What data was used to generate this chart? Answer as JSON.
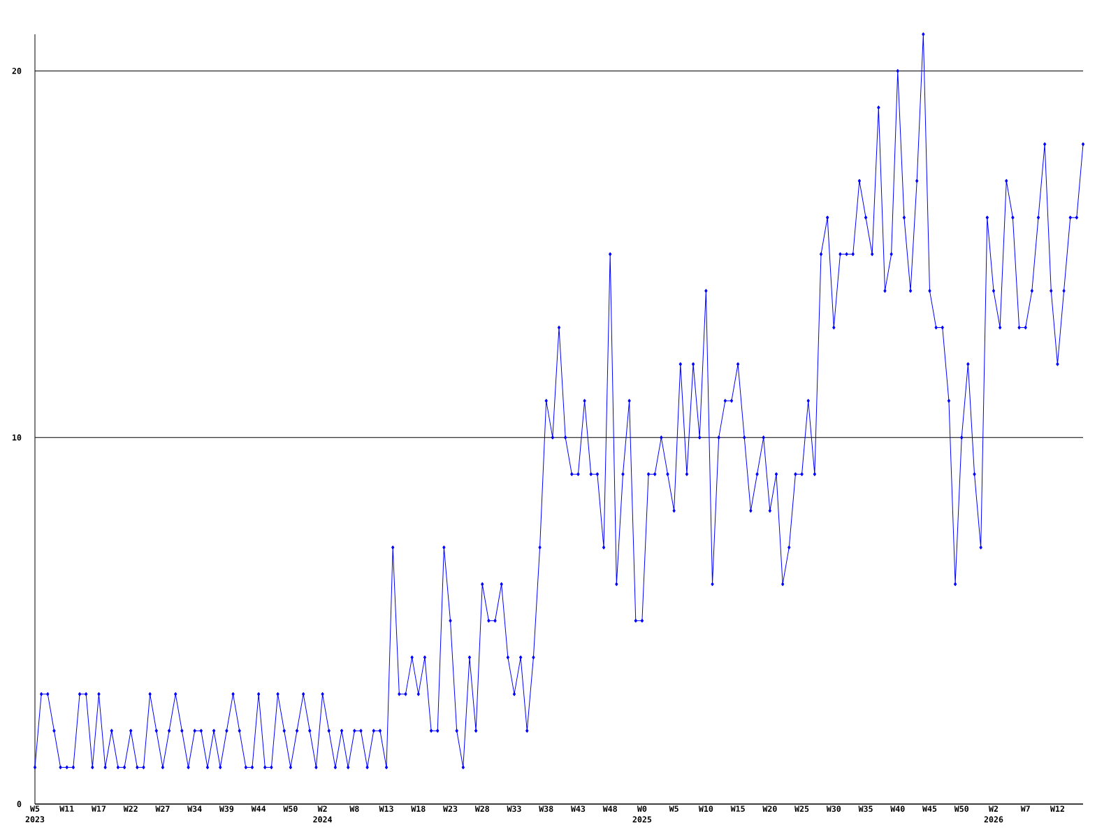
{
  "chart_data": {
    "type": "line",
    "categories": [
      "W5 2023",
      null,
      null,
      null,
      null,
      "W11",
      null,
      null,
      null,
      null,
      "W17",
      null,
      null,
      null,
      null,
      "W22",
      null,
      null,
      null,
      null,
      "W27",
      null,
      null,
      null,
      null,
      "W34",
      null,
      null,
      null,
      null,
      "W39",
      null,
      null,
      null,
      null,
      "W44",
      null,
      null,
      null,
      null,
      "W50",
      null,
      null,
      null,
      null,
      "W2 2024",
      null,
      null,
      null,
      null,
      "W8",
      null,
      null,
      null,
      null,
      "W13",
      null,
      null,
      null,
      null,
      "W18",
      null,
      null,
      null,
      null,
      "W23",
      null,
      null,
      null,
      null,
      "W28",
      null,
      null,
      null,
      null,
      "W33",
      null,
      null,
      null,
      null,
      "W38",
      null,
      null,
      null,
      null,
      "W43",
      null,
      null,
      null,
      null,
      "W48",
      null,
      null,
      null,
      null,
      "W0 2025",
      null,
      null,
      null,
      null,
      "W5",
      null,
      null,
      null,
      null,
      "W10",
      null,
      null,
      null,
      null,
      "W15",
      null,
      null,
      null,
      null,
      "W20",
      null,
      null,
      null,
      null,
      "W25",
      null,
      null,
      null,
      null,
      "W30",
      null,
      null,
      null,
      null,
      "W35",
      null,
      null,
      null,
      null,
      "W40",
      null,
      null,
      null,
      null,
      "W45",
      null,
      null,
      null,
      null,
      "W50",
      null,
      null,
      null,
      null,
      "W2 2026",
      null,
      null,
      null,
      null,
      "W7",
      null,
      null,
      null,
      null,
      "W12",
      null,
      null,
      null,
      null
    ],
    "values": [
      1,
      3,
      3,
      2,
      1,
      1,
      1,
      3,
      3,
      1,
      3,
      1,
      2,
      1,
      1,
      2,
      1,
      1,
      3,
      2,
      1,
      2,
      3,
      2,
      1,
      2,
      2,
      1,
      2,
      1,
      2,
      3,
      2,
      1,
      1,
      3,
      1,
      1,
      3,
      2,
      1,
      2,
      3,
      2,
      1,
      3,
      2,
      1,
      2,
      1,
      2,
      2,
      1,
      2,
      2,
      1,
      7,
      3,
      3,
      4,
      3,
      4,
      2,
      2,
      7,
      5,
      2,
      1,
      4,
      2,
      6,
      5,
      5,
      6,
      4,
      3,
      4,
      2,
      4,
      7,
      11,
      10,
      13,
      10,
      9,
      9,
      11,
      9,
      9,
      7,
      15,
      6,
      9,
      11,
      5,
      5,
      9,
      9,
      10,
      9,
      8,
      12,
      9,
      12,
      10,
      14,
      6,
      10,
      11,
      11,
      12,
      10,
      8,
      9,
      10,
      8,
      9,
      6,
      7,
      9,
      9,
      11,
      9,
      15,
      16,
      13,
      15,
      15,
      15,
      17,
      16,
      15,
      19,
      14,
      15,
      20,
      16,
      14,
      17,
      21,
      14,
      13,
      13,
      11,
      6,
      10,
      12,
      9,
      7,
      16,
      14,
      13,
      17,
      16,
      13,
      13,
      14,
      16,
      18,
      14,
      12,
      14,
      16,
      16,
      18
    ],
    "color": "#0000ff",
    "ylim": [
      0,
      21
    ],
    "yticks": [
      0,
      10,
      20
    ],
    "grid": "y",
    "marker": "diamond",
    "line_style": "solid"
  }
}
